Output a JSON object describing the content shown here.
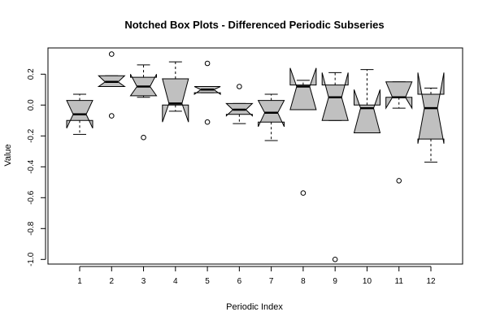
{
  "chart_data": {
    "type": "boxplot",
    "notched": true,
    "title": "Notched Box Plots - Differenced Periodic Subseries",
    "xlabel": "Periodic Index",
    "ylabel": "Value",
    "ylim": [
      -1.03,
      0.37
    ],
    "y_ticks": [
      -1.0,
      -0.8,
      -0.6,
      -0.4,
      -0.2,
      0.0,
      0.2
    ],
    "y_tick_labels": [
      "-1.0",
      "-0.8",
      "-0.6",
      "-0.4",
      "-0.2",
      "0.0",
      "0.2"
    ],
    "categories": [
      "1",
      "2",
      "3",
      "4",
      "5",
      "6",
      "7",
      "8",
      "9",
      "10",
      "11",
      "12"
    ],
    "box_fill": "#c0c0c0",
    "boxes": [
      {
        "label": "1",
        "whisker_low": -0.19,
        "q1": -0.1,
        "median": -0.06,
        "q3": 0.03,
        "whisker_high": 0.07,
        "notch": [
          -0.15,
          0.03
        ],
        "outliers": []
      },
      {
        "label": "2",
        "whisker_low": 0.12,
        "q1": 0.12,
        "median": 0.15,
        "q3": 0.19,
        "whisker_high": 0.19,
        "notch": [
          0.12,
          0.19
        ],
        "outliers": [
          0.33,
          -0.07
        ]
      },
      {
        "label": "3",
        "whisker_low": 0.05,
        "q1": 0.06,
        "median": 0.12,
        "q3": 0.18,
        "whisker_high": 0.26,
        "notch": [
          0.06,
          0.2
        ],
        "outliers": [
          -0.21
        ]
      },
      {
        "label": "4",
        "whisker_low": -0.04,
        "q1": 0.0,
        "median": 0.01,
        "q3": 0.17,
        "whisker_high": 0.28,
        "notch": [
          -0.11,
          0.17
        ],
        "outliers": []
      },
      {
        "label": "5",
        "whisker_low": 0.08,
        "q1": 0.08,
        "median": 0.1,
        "q3": 0.12,
        "whisker_high": 0.12,
        "notch": [
          0.07,
          0.12
        ],
        "outliers": [
          0.27,
          -0.11
        ]
      },
      {
        "label": "6",
        "whisker_low": -0.12,
        "q1": -0.06,
        "median": -0.03,
        "q3": 0.01,
        "whisker_high": 0.01,
        "notch": [
          -0.07,
          0.01
        ],
        "outliers": [
          0.12
        ]
      },
      {
        "label": "7",
        "whisker_low": -0.23,
        "q1": -0.11,
        "median": -0.05,
        "q3": 0.03,
        "whisker_high": 0.07,
        "notch": [
          -0.14,
          0.03
        ],
        "outliers": []
      },
      {
        "label": "8",
        "whisker_low": -0.03,
        "q1": -0.03,
        "median": 0.12,
        "q3": 0.13,
        "whisker_high": 0.16,
        "notch": [
          -0.03,
          0.24
        ],
        "outliers": [
          -0.57
        ]
      },
      {
        "label": "9",
        "whisker_low": -0.1,
        "q1": -0.1,
        "median": 0.05,
        "q3": 0.13,
        "whisker_high": 0.21,
        "notch": [
          -0.1,
          0.21
        ],
        "outliers": [
          -1.0
        ]
      },
      {
        "label": "10",
        "whisker_low": -0.18,
        "q1": -0.18,
        "median": -0.02,
        "q3": 0.0,
        "whisker_high": 0.23,
        "notch": [
          -0.18,
          0.1
        ],
        "outliers": []
      },
      {
        "label": "11",
        "whisker_low": -0.02,
        "q1": 0.05,
        "median": 0.05,
        "q3": 0.15,
        "whisker_high": 0.15,
        "notch": [
          -0.02,
          0.15
        ],
        "outliers": [
          -0.49
        ]
      },
      {
        "label": "12",
        "whisker_low": -0.37,
        "q1": -0.22,
        "median": -0.02,
        "q3": 0.07,
        "whisker_high": 0.11,
        "notch": [
          -0.25,
          0.21
        ],
        "outliers": []
      }
    ]
  }
}
